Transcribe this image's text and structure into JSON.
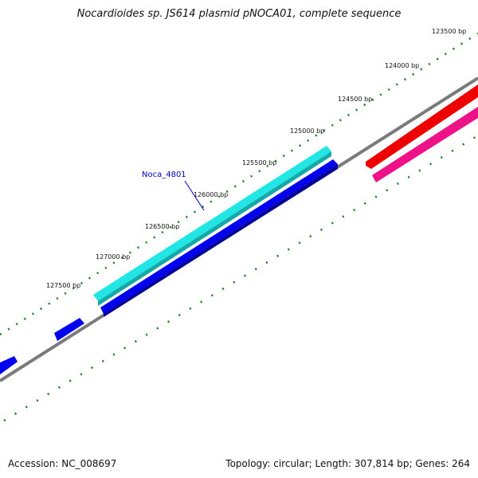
{
  "title": "Nocardioides sp. JS614 plasmid pNOCA01, complete sequence",
  "footer": {
    "accession": "Accession: NC_008697",
    "summary": "Topology: circular; Length: 307,814 bp; Genes: 264"
  },
  "map": {
    "tick_labels": [
      {
        "name": "tick-label-123500",
        "text": "123500 bp"
      },
      {
        "name": "tick-label-124000",
        "text": "124000 bp"
      },
      {
        "name": "tick-label-124500",
        "text": "124500 bp"
      },
      {
        "name": "tick-label-125000",
        "text": "125000 bp"
      },
      {
        "name": "tick-label-125500",
        "text": "125500 bp"
      },
      {
        "name": "tick-label-126000",
        "text": "126000 bp"
      },
      {
        "name": "tick-label-126500",
        "text": "126500 bp"
      },
      {
        "name": "tick-label-127000",
        "text": "127000 bp"
      },
      {
        "name": "tick-label-127500",
        "text": "127500 bp"
      }
    ],
    "gene_label": "Noca_4801",
    "colors": {
      "backbone": "#808080",
      "tick": "#1a7a1a",
      "cds_forward_blue": "#0000ee",
      "cds_highlight_cyan": "#22e6e6",
      "cds_red": "#ee0000",
      "cds_pink": "#ee1188",
      "label_link": "#0000cc"
    }
  }
}
